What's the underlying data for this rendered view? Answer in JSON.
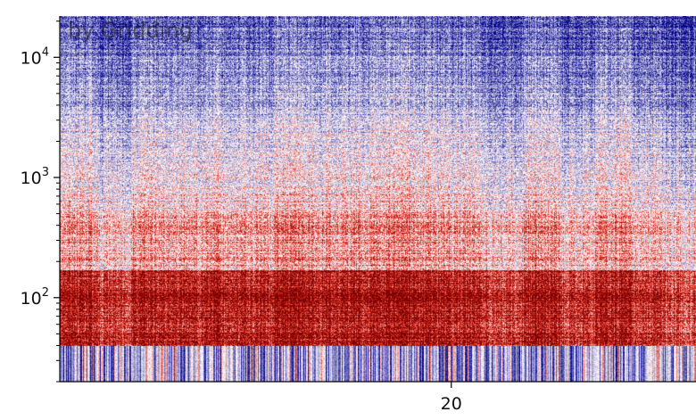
{
  "chart_data": {
    "type": "heatmap",
    "title": "",
    "xlabel": "",
    "ylabel": "",
    "x_scale": "linear",
    "y_scale": "log",
    "xlim": [
      0,
      32.5
    ],
    "ylim": [
      20,
      22050
    ],
    "x_ticks": [
      {
        "value": 20,
        "label": "20"
      }
    ],
    "y_ticks": [
      {
        "value": 100,
        "base": "10",
        "exp": "2"
      },
      {
        "value": 1000,
        "base": "10",
        "exp": "3"
      },
      {
        "value": 10000,
        "base": "10",
        "exp": "4"
      }
    ],
    "colormap": [
      "#00008b",
      "#ffffff",
      "#dc2a1e",
      "#7a0000"
    ],
    "grid": false,
    "bands": [
      {
        "freq_low": 20,
        "freq_high": 40,
        "level": "low, striped blue/white"
      },
      {
        "freq_low": 40,
        "freq_high": 170,
        "level": "high (red)"
      },
      {
        "freq_low": 170,
        "freq_high": 2500,
        "level": "mixed (red/white/blue)"
      },
      {
        "freq_low": 2500,
        "freq_high": 22050,
        "level": "low (blue)"
      }
    ]
  },
  "watermark": "by Gridding"
}
